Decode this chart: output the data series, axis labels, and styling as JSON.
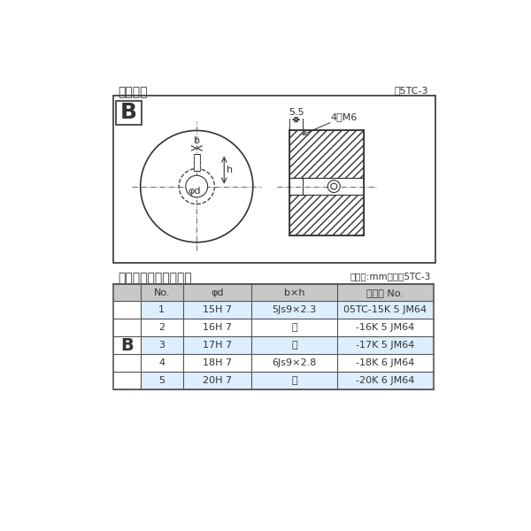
{
  "page_bg": "#ffffff",
  "diagram_title": "軸穴形状",
  "diagram_ref": "図5TC-3",
  "table_title": "軸穴形状コード一覧表",
  "table_unit": "（単位:mm）　表5TC-3",
  "table_headers": [
    "No.",
    "φd",
    "b×h",
    "コード No."
  ],
  "table_rows": [
    [
      "1",
      "15H 7",
      "5Js9×2.3",
      "05TC-15K 5 JM64"
    ],
    [
      "2",
      "16H 7",
      "〃",
      "-16K 5 JM64"
    ],
    [
      "3",
      "17H 7",
      "〃",
      "-17K 5 JM64"
    ],
    [
      "4",
      "18H 7",
      "6Js9×2.8",
      "-18K 6 JM64"
    ],
    [
      "5",
      "20H 7",
      "〃",
      "-20K 6 JM64"
    ]
  ],
  "highlight_rows": [
    0,
    2,
    4
  ],
  "row_label": "B",
  "line_color": "#333333",
  "dash_color": "#666666",
  "highlight_color": "#ddeeff",
  "table_header_bg": "#c8c8c8",
  "table_border": "#555555",
  "hdr_cols": [
    40,
    62,
    100,
    125,
    140
  ]
}
